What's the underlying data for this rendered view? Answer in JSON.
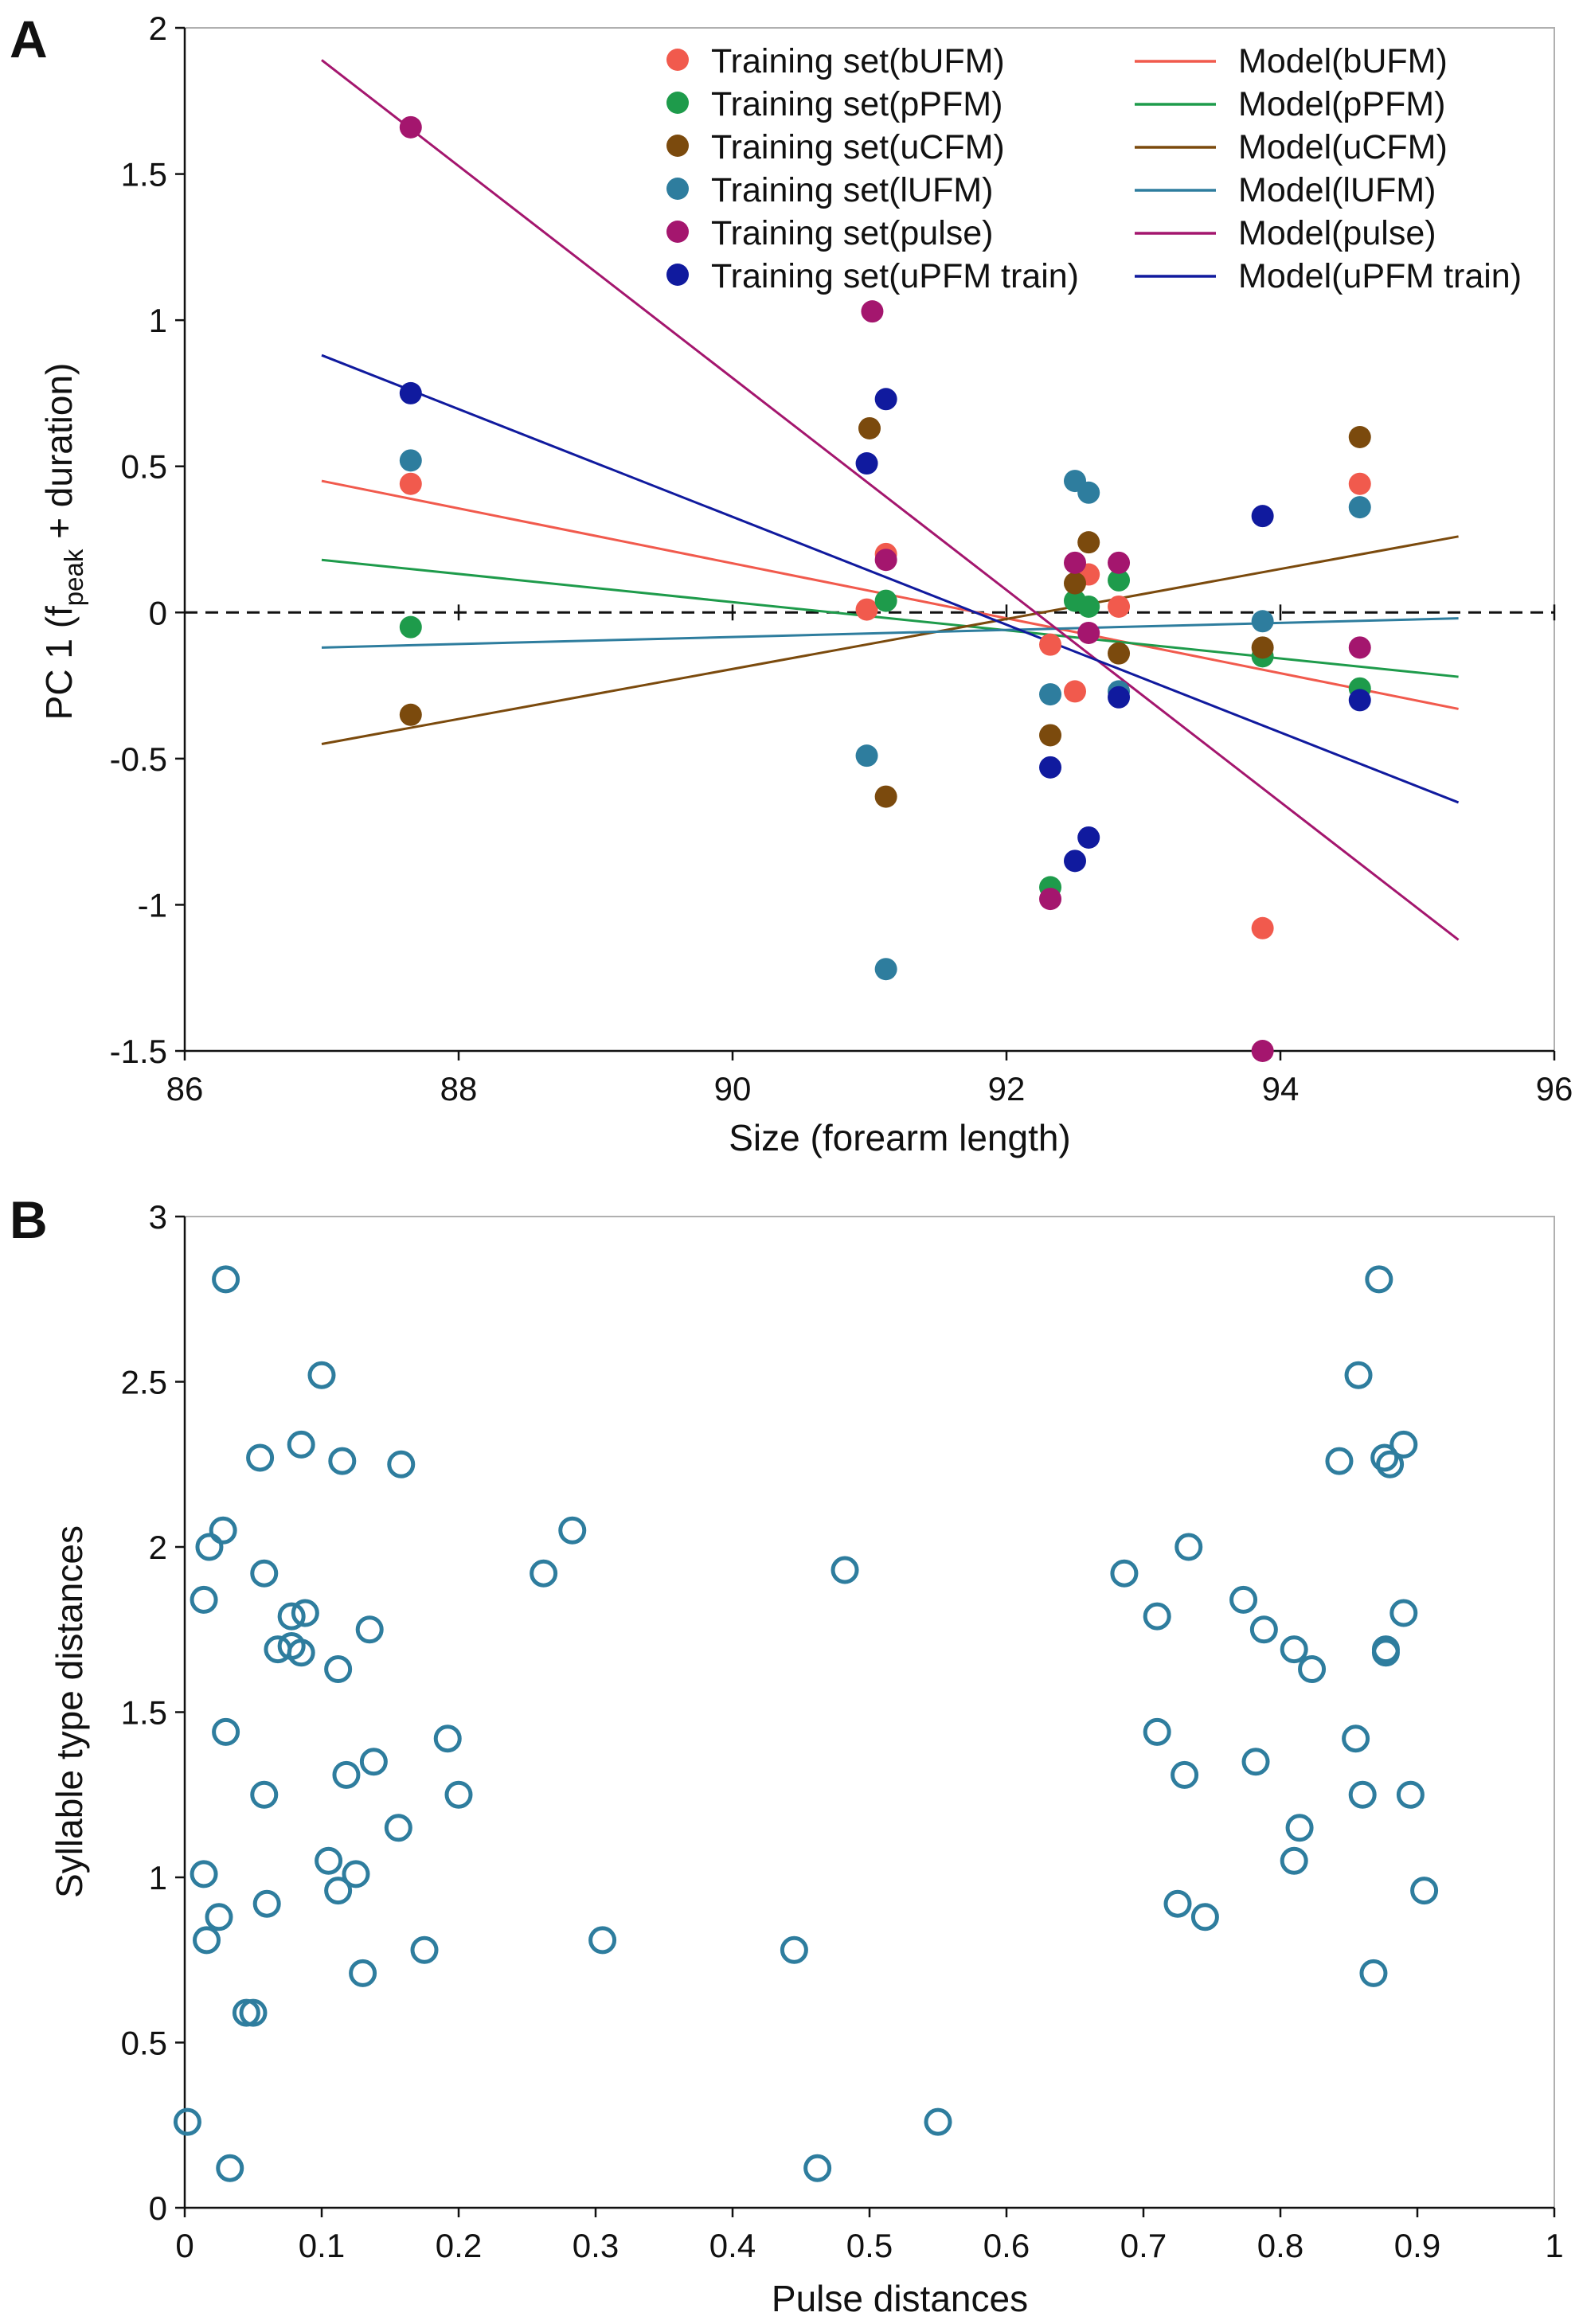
{
  "chart_data": [
    {
      "type": "scatter",
      "panel_label": "A",
      "xlabel": "Size (forearm length)",
      "ylabel": "PC 1 (f",
      "ylabel_sub": "peak",
      "ylabel_end": " + duration)",
      "xlim": [
        86,
        96
      ],
      "ylim": [
        -1.5,
        2
      ],
      "xticks": [
        86,
        88,
        90,
        92,
        94,
        96
      ],
      "yticks": [
        -1.5,
        -1,
        -0.5,
        0,
        0.5,
        1,
        1.5,
        2
      ],
      "xtick_labels": [
        "86",
        "88",
        "90",
        "92",
        "94",
        "96"
      ],
      "ytick_labels": [
        "-1.5",
        "-1",
        "-0.5",
        "0",
        "0.5",
        "1",
        "1.5",
        "2"
      ],
      "reference_line": {
        "y": 0,
        "style": "dashed"
      },
      "legend_position": "top-right",
      "series": [
        {
          "name": "Training set(bUFM)",
          "model_name": "Model(bUFM)",
          "color": "#f15a4d",
          "x": [
            87.65,
            90.98,
            91.12,
            92.32,
            92.5,
            92.6,
            92.82,
            93.87,
            94.58
          ],
          "y": [
            0.44,
            0.01,
            0.2,
            -0.11,
            -0.27,
            0.13,
            0.02,
            -1.08,
            0.44
          ],
          "model": {
            "x": [
              87,
              95.3
            ],
            "y": [
              0.45,
              -0.33
            ]
          }
        },
        {
          "name": "Training set(pPFM)",
          "model_name": "Model(pPFM)",
          "color": "#1e9b4b",
          "x": [
            87.65,
            91.12,
            92.32,
            92.5,
            92.6,
            92.82,
            93.87,
            94.58
          ],
          "y": [
            -0.05,
            0.04,
            -0.94,
            0.04,
            0.02,
            0.11,
            -0.15,
            -0.26
          ],
          "model": {
            "x": [
              87,
              95.3
            ],
            "y": [
              0.18,
              -0.22
            ]
          }
        },
        {
          "name": "Training set(uCFM)",
          "model_name": "Model(uCFM)",
          "color": "#7b4a0d",
          "x": [
            87.65,
            91.0,
            91.12,
            92.32,
            92.5,
            92.6,
            92.82,
            93.87,
            94.58
          ],
          "y": [
            -0.35,
            0.63,
            -0.63,
            -0.42,
            0.1,
            0.24,
            -0.14,
            -0.12,
            0.6
          ],
          "model": {
            "x": [
              87,
              95.3
            ],
            "y": [
              -0.45,
              0.26
            ]
          }
        },
        {
          "name": "Training set(lUFM)",
          "model_name": "Model(lUFM)",
          "color": "#2e7d9e",
          "x": [
            87.65,
            90.98,
            91.12,
            92.32,
            92.5,
            92.6,
            92.82,
            93.87,
            94.58
          ],
          "y": [
            0.52,
            -0.49,
            -1.22,
            -0.28,
            0.45,
            0.41,
            -0.27,
            -0.03,
            0.36
          ],
          "model": {
            "x": [
              87,
              95.3
            ],
            "y": [
              -0.12,
              -0.02
            ]
          }
        },
        {
          "name": "Training set(pulse)",
          "model_name": "Model(pulse)",
          "color": "#a4166e",
          "x": [
            87.65,
            91.02,
            91.12,
            92.32,
            92.5,
            92.6,
            92.82,
            93.87,
            94.58
          ],
          "y": [
            1.66,
            1.03,
            0.18,
            -0.98,
            0.17,
            -0.07,
            0.17,
            -1.5,
            -0.12
          ],
          "model": {
            "x": [
              87,
              95.3
            ],
            "y": [
              1.89,
              -1.12
            ]
          }
        },
        {
          "name": "Training set(uPFM train)",
          "model_name": "Model(uPFM train)",
          "color": "#101a9e",
          "x": [
            87.65,
            90.98,
            91.12,
            92.32,
            92.5,
            92.6,
            92.82,
            93.87,
            94.58
          ],
          "y": [
            0.75,
            0.51,
            0.73,
            -0.53,
            -0.85,
            -0.77,
            -0.29,
            0.33,
            -0.3
          ],
          "model": {
            "x": [
              87,
              95.3
            ],
            "y": [
              0.88,
              -0.65
            ]
          }
        }
      ]
    },
    {
      "type": "scatter",
      "panel_label": "B",
      "xlabel": "Pulse distances",
      "ylabel": "Syllable type distances",
      "xlim": [
        0,
        1
      ],
      "ylim": [
        0,
        3
      ],
      "xticks": [
        0,
        0.1,
        0.2,
        0.3,
        0.4,
        0.5,
        0.6,
        0.7,
        0.8,
        0.9,
        1
      ],
      "yticks": [
        0,
        0.5,
        1,
        1.5,
        2,
        2.5,
        3
      ],
      "xtick_labels": [
        "0",
        "0.1",
        "0.2",
        "0.3",
        "0.4",
        "0.5",
        "0.6",
        "0.7",
        "0.8",
        "0.9",
        "1"
      ],
      "ytick_labels": [
        "0",
        "0.5",
        "1",
        "1.5",
        "2",
        "2.5",
        "3"
      ],
      "marker": "open-circle",
      "color": "#2e7d9e",
      "points": [
        [
          0.002,
          0.26
        ],
        [
          0.03,
          2.81
        ],
        [
          0.1,
          2.52
        ],
        [
          0.055,
          2.27
        ],
        [
          0.085,
          2.31
        ],
        [
          0.115,
          2.26
        ],
        [
          0.158,
          2.25
        ],
        [
          0.028,
          2.05
        ],
        [
          0.018,
          2.0
        ],
        [
          0.014,
          1.84
        ],
        [
          0.058,
          1.92
        ],
        [
          0.262,
          1.92
        ],
        [
          0.283,
          2.05
        ],
        [
          0.482,
          1.93
        ],
        [
          0.078,
          1.79
        ],
        [
          0.088,
          1.8
        ],
        [
          0.068,
          1.69
        ],
        [
          0.078,
          1.7
        ],
        [
          0.085,
          1.68
        ],
        [
          0.112,
          1.63
        ],
        [
          0.135,
          1.75
        ],
        [
          0.03,
          1.44
        ],
        [
          0.192,
          1.42
        ],
        [
          0.058,
          1.25
        ],
        [
          0.2,
          1.25
        ],
        [
          0.118,
          1.31
        ],
        [
          0.138,
          1.35
        ],
        [
          0.156,
          1.15
        ],
        [
          0.014,
          1.01
        ],
        [
          0.105,
          1.05
        ],
        [
          0.125,
          1.01
        ],
        [
          0.112,
          0.96
        ],
        [
          0.06,
          0.92
        ],
        [
          0.025,
          0.88
        ],
        [
          0.016,
          0.81
        ],
        [
          0.305,
          0.81
        ],
        [
          0.175,
          0.78
        ],
        [
          0.13,
          0.71
        ],
        [
          0.045,
          0.59
        ],
        [
          0.05,
          0.59
        ],
        [
          0.033,
          0.12
        ],
        [
          0.445,
          0.78
        ],
        [
          0.462,
          0.12
        ],
        [
          0.55,
          0.26
        ],
        [
          0.872,
          2.81
        ],
        [
          0.857,
          2.52
        ],
        [
          0.843,
          2.26
        ],
        [
          0.876,
          2.27
        ],
        [
          0.88,
          2.25
        ],
        [
          0.89,
          2.31
        ],
        [
          0.686,
          1.92
        ],
        [
          0.733,
          2.0
        ],
        [
          0.71,
          1.79
        ],
        [
          0.773,
          1.84
        ],
        [
          0.788,
          1.75
        ],
        [
          0.81,
          1.69
        ],
        [
          0.823,
          1.63
        ],
        [
          0.877,
          1.69
        ],
        [
          0.877,
          1.68
        ],
        [
          0.89,
          1.8
        ],
        [
          0.71,
          1.44
        ],
        [
          0.855,
          1.42
        ],
        [
          0.73,
          1.31
        ],
        [
          0.782,
          1.35
        ],
        [
          0.86,
          1.25
        ],
        [
          0.895,
          1.25
        ],
        [
          0.814,
          1.15
        ],
        [
          0.81,
          1.05
        ],
        [
          0.725,
          0.92
        ],
        [
          0.745,
          0.88
        ],
        [
          0.905,
          0.96
        ],
        [
          0.868,
          0.71
        ]
      ]
    }
  ]
}
